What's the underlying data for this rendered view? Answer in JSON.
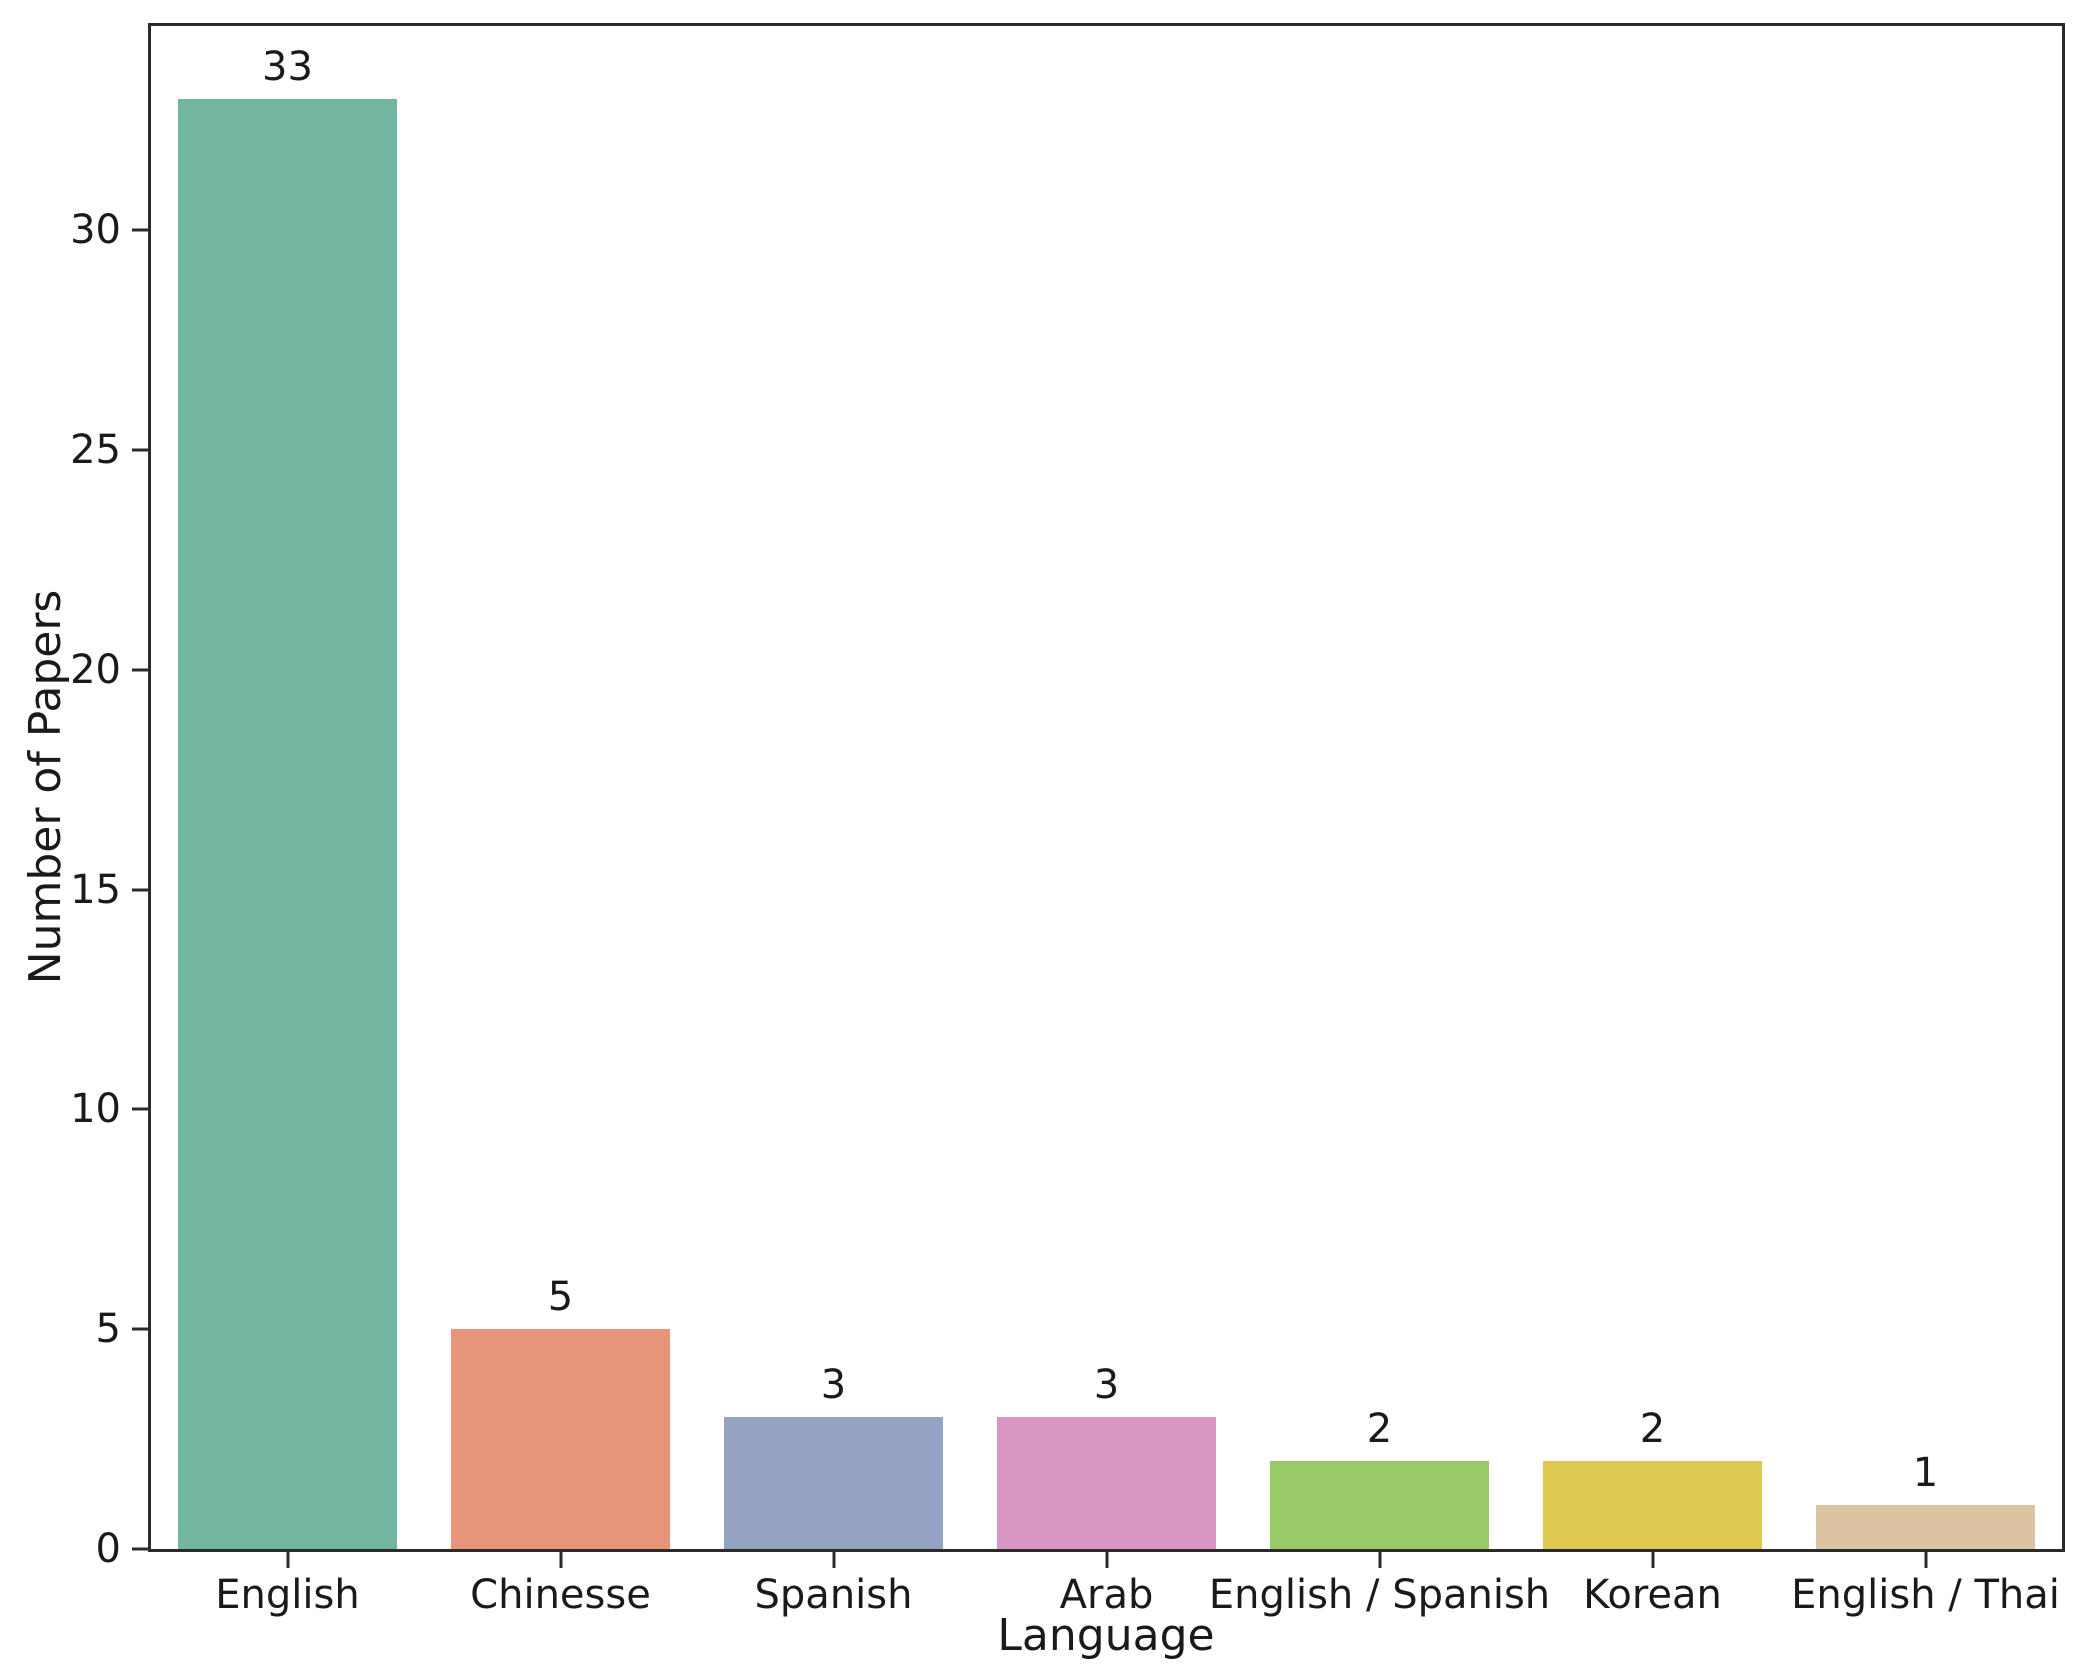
{
  "chart_data": {
    "type": "bar",
    "categories": [
      "English",
      "Chinesse",
      "Spanish",
      "Arab",
      "English / Spanish",
      "Korean",
      "English / Thai"
    ],
    "values": [
      33,
      5,
      3,
      3,
      2,
      2,
      1
    ],
    "bar_colors": [
      "#72b5a0",
      "#e6947a",
      "#95a3c3",
      "#d996c2",
      "#9ac968",
      "#dfc851",
      "#dcc3a1"
    ],
    "value_labels": [
      "33",
      "5",
      "3",
      "3",
      "2",
      "2",
      "1"
    ],
    "title": "",
    "xlabel": "Language",
    "ylabel": "Number of Papers",
    "ylim": [
      0,
      34.65
    ],
    "yticks": [
      0,
      5,
      10,
      15,
      20,
      25,
      30
    ],
    "grid": false,
    "legend": null,
    "bar_width_fraction": 0.8,
    "spine_color": "#2b2b2b",
    "text_color": "#1a1a1a"
  }
}
